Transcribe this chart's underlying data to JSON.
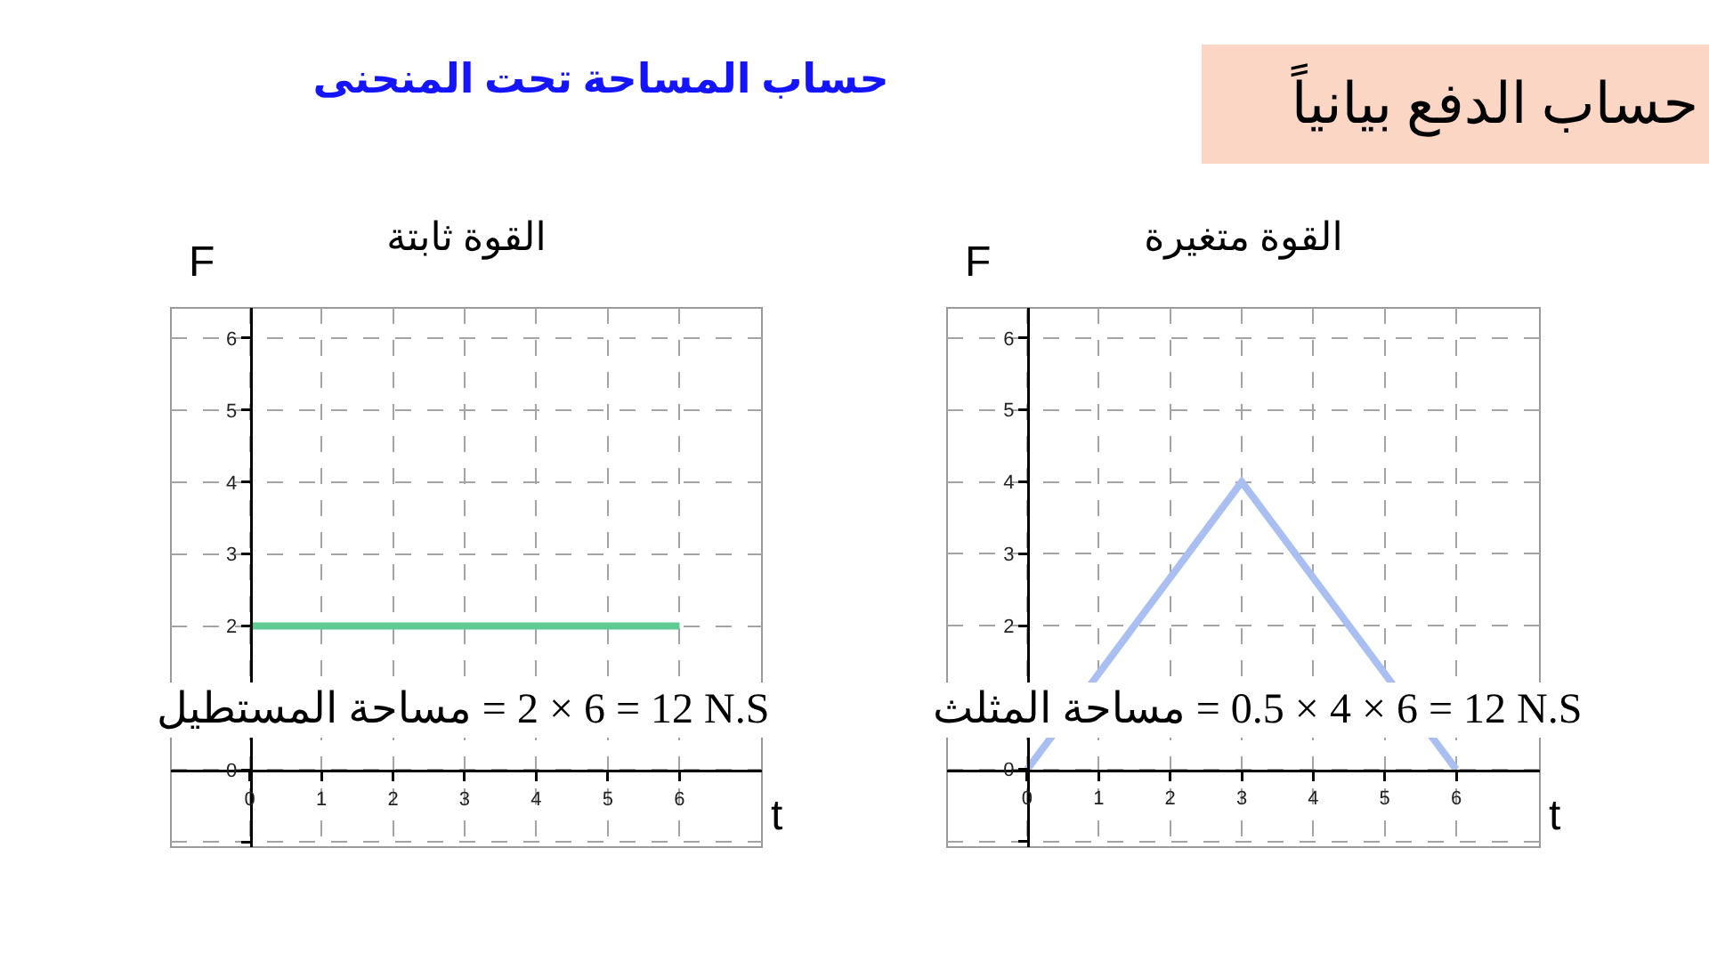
{
  "chart_data": [
    {
      "type": "other",
      "title": "حساب الدفع بيانياً",
      "subtitle": "حساب المساحة تحت المنحنى"
    },
    {
      "type": "line",
      "title": "القوة ثابتة",
      "xlabel": "t",
      "ylabel": "F",
      "x": [
        0,
        6
      ],
      "series": [
        {
          "color": "#5fcb93",
          "values": [
            2,
            2
          ]
        }
      ],
      "xlim": [
        -1.1,
        7.15
      ],
      "ylim": [
        -1.07,
        6.42
      ],
      "xticks": [
        0,
        1,
        2,
        3,
        4,
        5,
        6
      ],
      "yticks": [
        {
          "value": -1,
          "label": null
        },
        0,
        2,
        3,
        4,
        5,
        6
      ],
      "grid": true,
      "annotations": [
        "مساحة المستطيل = 2 × 6 = 12 N.S"
      ]
    },
    {
      "type": "line",
      "title": "القوة متغيرة",
      "xlabel": "t",
      "ylabel": "F",
      "x": [
        0,
        3,
        6
      ],
      "series": [
        {
          "color": "#a9bff2",
          "values": [
            0,
            4,
            0
          ]
        }
      ],
      "xlim": [
        -1.12,
        7.17
      ],
      "ylim": [
        -1.08,
        6.42
      ],
      "xticks": [
        0,
        1,
        2,
        3,
        4,
        5,
        6
      ],
      "yticks": [
        {
          "value": -1,
          "label": null
        },
        0,
        2,
        3,
        4,
        5,
        6
      ],
      "grid": true,
      "annotations": [
        "مساحة المثلث = 0.5 × 4 × 6 = 12 N.S"
      ]
    }
  ]
}
